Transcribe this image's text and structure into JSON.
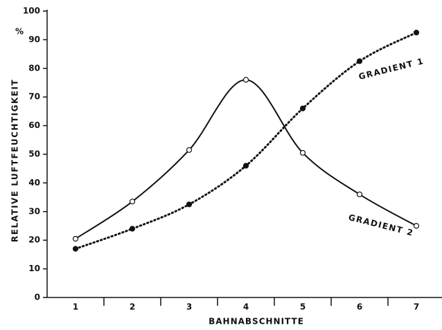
{
  "chart_data": {
    "type": "line",
    "xlabel": "BAHNABSCHNITTE",
    "ylabel": "RELATIVE  LUFTFEUCHTIGKEIT",
    "yunit": "%",
    "categories": [
      "1",
      "2",
      "3",
      "4",
      "5",
      "6",
      "7"
    ],
    "series": [
      {
        "name": "GRADIENT 1",
        "color": "#111111",
        "marker": "filled",
        "line_style": "dotted",
        "values": [
          17,
          24,
          32.5,
          46,
          66,
          82.5,
          92.5
        ]
      },
      {
        "name": "GRADIENT 2",
        "color": "#111111",
        "marker": "open",
        "line_style": "solid",
        "values": [
          20.5,
          33.5,
          51.5,
          76,
          50.5,
          36,
          25
        ]
      }
    ],
    "ylim": [
      0,
      100
    ],
    "yticks": [
      0,
      10,
      20,
      30,
      40,
      50,
      60,
      70,
      80,
      90,
      100
    ],
    "grid": false
  }
}
